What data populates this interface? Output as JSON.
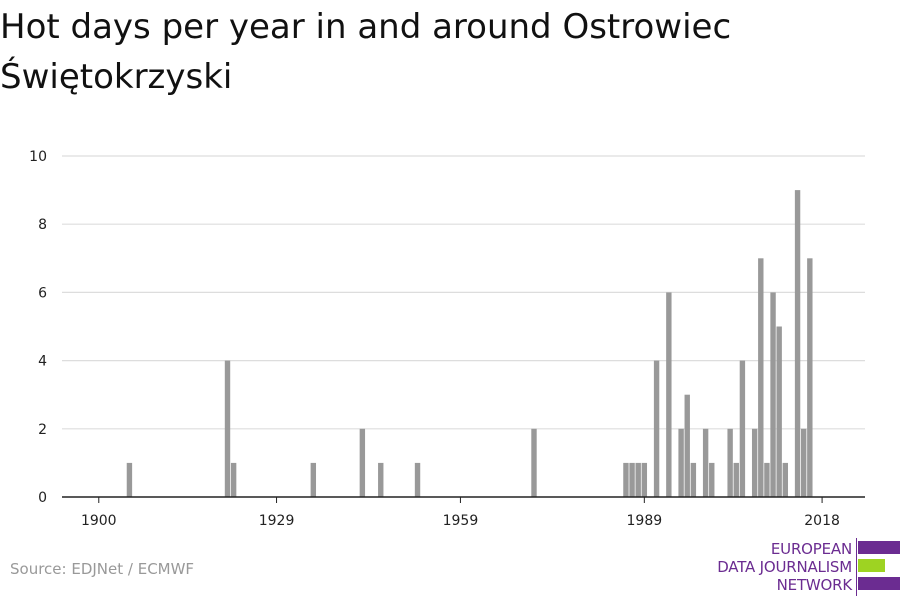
{
  "title": "Hot days per year in and around Ostrowiec Świętokrzyski",
  "source": "Source: EDJNet / ECMWF",
  "logo": {
    "line1": "EUROPEAN",
    "line2": "DATA JOURNALISM",
    "line3": "NETWORK",
    "colors": {
      "purple": "#6b2c91",
      "green": "#9ed322"
    }
  },
  "chart_data": {
    "type": "bar",
    "title": "Hot days per year in and around Ostrowiec Świętokrzyski",
    "xlabel": "",
    "ylabel": "",
    "xlim": [
      1894,
      2025
    ],
    "ylim": [
      0,
      10
    ],
    "x_ticks": [
      1900,
      1929,
      1959,
      1989,
      2018
    ],
    "y_ticks": [
      0,
      2,
      4,
      6,
      8,
      10
    ],
    "grid": true,
    "bar_color": "#999999",
    "x": [
      1905,
      1921,
      1922,
      1935,
      1943,
      1946,
      1952,
      1971,
      1986,
      1987,
      1988,
      1989,
      1991,
      1993,
      1995,
      1996,
      1997,
      1999,
      2000,
      2003,
      2004,
      2005,
      2007,
      2008,
      2009,
      2010,
      2011,
      2012,
      2014,
      2015,
      2016
    ],
    "values": [
      1,
      4,
      1,
      1,
      2,
      1,
      1,
      2,
      1,
      1,
      1,
      1,
      4,
      6,
      2,
      3,
      1,
      2,
      1,
      2,
      1,
      4,
      2,
      7,
      1,
      6,
      5,
      1,
      9,
      2,
      7
    ]
  }
}
